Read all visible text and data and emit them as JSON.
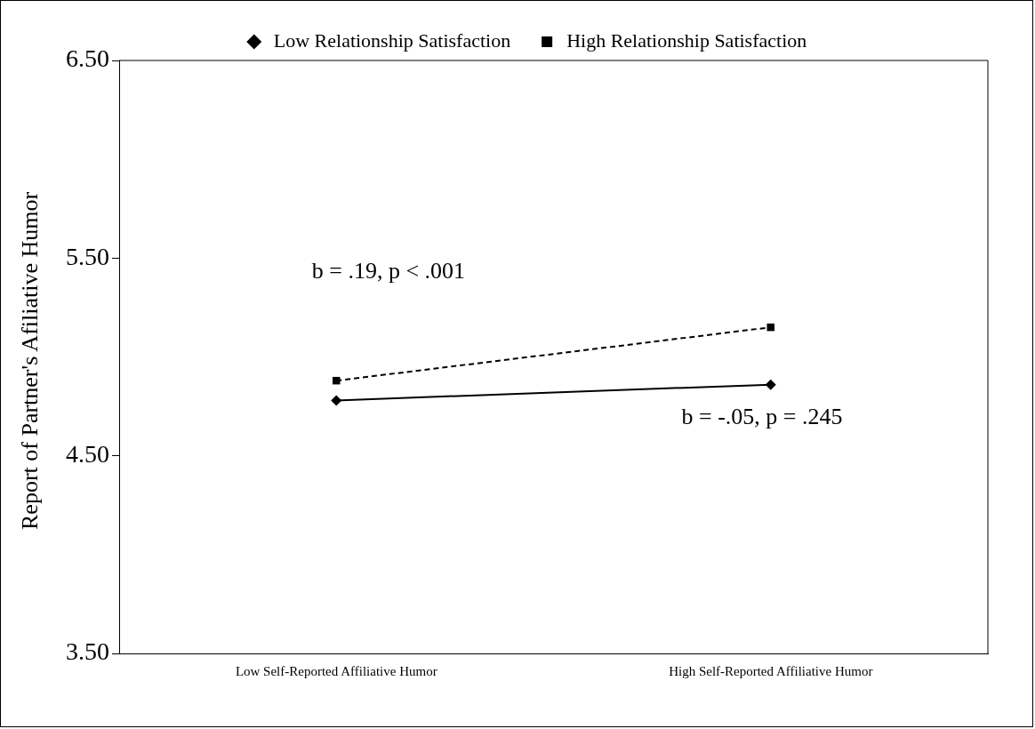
{
  "chart_data": {
    "type": "line",
    "ylabel": "Report of Partner's Afiliative Humor",
    "categories": [
      "Low Self-Reported Affiliative Humor",
      "High Self-Reported Affiliative Humor"
    ],
    "series": [
      {
        "name": "Low Relationship Satisfaction",
        "color": "#000000",
        "values": [
          4.78,
          4.86
        ],
        "marker": "diamond",
        "line_style": "solid"
      },
      {
        "name": "High Relationship Satisfaction",
        "color": "#000000",
        "values": [
          4.88,
          5.15
        ],
        "marker": "square",
        "line_style": "dashed"
      }
    ],
    "ylim": [
      3.5,
      6.5
    ],
    "yticks": [
      {
        "value": 3.5,
        "label": "3.50"
      },
      {
        "value": 4.5,
        "label": "4.50"
      },
      {
        "value": 5.5,
        "label": "5.50"
      },
      {
        "value": 6.5,
        "label": "6.50"
      }
    ],
    "grid": false,
    "legend": "top",
    "annotations": [
      "b = .19, p < .001",
      "b = -.05, p = .245"
    ]
  }
}
